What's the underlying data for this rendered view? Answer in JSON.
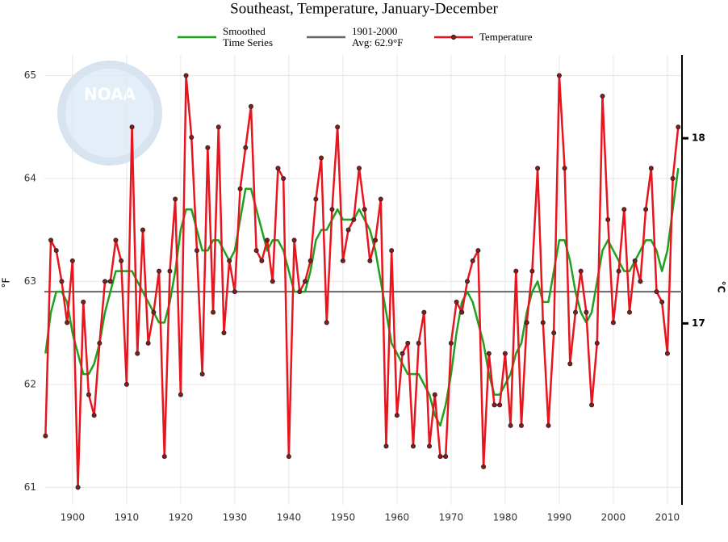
{
  "chart_data": {
    "type": "line",
    "title": "Southeast, Temperature, January-December",
    "logo_text": "NOAA",
    "y_label": "°F",
    "y2_label": "°C",
    "x": [
      1895,
      1896,
      1897,
      1898,
      1899,
      1900,
      1901,
      1902,
      1903,
      1904,
      1905,
      1906,
      1907,
      1908,
      1909,
      1910,
      1911,
      1912,
      1913,
      1914,
      1915,
      1916,
      1917,
      1918,
      1919,
      1920,
      1921,
      1922,
      1923,
      1924,
      1925,
      1926,
      1927,
      1928,
      1929,
      1930,
      1931,
      1932,
      1933,
      1934,
      1935,
      1936,
      1937,
      1938,
      1939,
      1940,
      1941,
      1942,
      1943,
      1944,
      1945,
      1946,
      1947,
      1948,
      1949,
      1950,
      1951,
      1952,
      1953,
      1954,
      1955,
      1956,
      1957,
      1958,
      1959,
      1960,
      1961,
      1962,
      1963,
      1964,
      1965,
      1966,
      1967,
      1968,
      1969,
      1970,
      1971,
      1972,
      1973,
      1974,
      1975,
      1976,
      1977,
      1978,
      1979,
      1980,
      1981,
      1982,
      1983,
      1984,
      1985,
      1986,
      1987,
      1988,
      1989,
      1990,
      1991,
      1992,
      1993,
      1994,
      1995,
      1996,
      1997,
      1998,
      1999,
      2000,
      2001,
      2002,
      2003,
      2004,
      2005,
      2006,
      2007,
      2008,
      2009,
      2010,
      2011,
      2012
    ],
    "series": [
      {
        "name": "Smoothed\nTime Series",
        "color": "#1fa01f",
        "markers": false,
        "values": [
          62.3,
          62.7,
          62.9,
          62.9,
          62.8,
          62.5,
          62.3,
          62.1,
          62.1,
          62.2,
          62.4,
          62.7,
          62.9,
          63.1,
          63.1,
          63.1,
          63.1,
          63.0,
          62.9,
          62.8,
          62.7,
          62.6,
          62.6,
          62.8,
          63.1,
          63.5,
          63.7,
          63.7,
          63.5,
          63.3,
          63.3,
          63.4,
          63.4,
          63.3,
          63.2,
          63.3,
          63.6,
          63.9,
          63.9,
          63.7,
          63.5,
          63.3,
          63.4,
          63.4,
          63.3,
          63.1,
          62.9,
          62.9,
          62.9,
          63.1,
          63.4,
          63.5,
          63.5,
          63.6,
          63.7,
          63.6,
          63.6,
          63.6,
          63.7,
          63.6,
          63.5,
          63.3,
          63.0,
          62.7,
          62.4,
          62.3,
          62.2,
          62.1,
          62.1,
          62.1,
          62.0,
          61.9,
          61.7,
          61.6,
          61.8,
          62.1,
          62.5,
          62.8,
          62.9,
          62.8,
          62.6,
          62.4,
          62.1,
          61.9,
          61.9,
          62.0,
          62.1,
          62.3,
          62.4,
          62.7,
          62.9,
          63.0,
          62.8,
          62.8,
          63.1,
          63.4,
          63.4,
          63.2,
          62.9,
          62.7,
          62.6,
          62.7,
          63.0,
          63.3,
          63.4,
          63.3,
          63.2,
          63.1,
          63.1,
          63.2,
          63.3,
          63.4,
          63.4,
          63.3,
          63.1,
          63.3,
          63.7,
          64.1
        ]
      },
      {
        "name": "Temperature",
        "color": "#e8141e",
        "markers": true,
        "values": [
          61.5,
          63.4,
          63.3,
          63.0,
          62.6,
          63.2,
          61.0,
          62.8,
          61.9,
          61.7,
          62.4,
          63.0,
          63.0,
          63.4,
          63.2,
          62.0,
          64.5,
          62.3,
          63.5,
          62.4,
          62.7,
          63.1,
          61.3,
          63.1,
          63.8,
          61.9,
          65.0,
          64.4,
          63.3,
          62.1,
          64.3,
          62.7,
          64.5,
          62.5,
          63.2,
          62.9,
          63.9,
          64.3,
          64.7,
          63.3,
          63.2,
          63.4,
          63.0,
          64.1,
          64.0,
          61.3,
          63.4,
          62.9,
          63.0,
          63.2,
          63.8,
          64.2,
          62.6,
          63.7,
          64.5,
          63.2,
          63.5,
          63.6,
          64.1,
          63.7,
          63.2,
          63.4,
          63.8,
          61.4,
          63.3,
          61.7,
          62.3,
          62.4,
          61.4,
          62.4,
          62.7,
          61.4,
          61.9,
          61.3,
          61.3,
          62.4,
          62.8,
          62.7,
          63.0,
          63.2,
          63.3,
          61.2,
          62.3,
          61.8,
          61.8,
          62.3,
          61.6,
          63.1,
          61.6,
          62.6,
          63.1,
          64.1,
          62.6,
          61.6,
          62.5,
          65.0,
          64.1,
          62.2,
          62.7,
          63.1,
          62.7,
          61.8,
          62.4,
          64.8,
          63.6,
          62.6,
          63.1,
          63.7,
          62.7,
          63.2,
          63.0,
          63.7,
          64.1,
          62.9,
          62.8,
          62.3,
          64.0,
          64.5
        ]
      }
    ],
    "reference_line": {
      "name": "1901-2000\nAvg: 62.9°F",
      "value": 62.9,
      "color": "#666666"
    },
    "xlim": [
      1894.8,
      2012.7
    ],
    "xticks": [
      1900,
      1910,
      1920,
      1930,
      1940,
      1950,
      1960,
      1970,
      1980,
      1990,
      2000,
      2010
    ],
    "ylim": [
      60.83,
      65.2
    ],
    "yticks": [
      61,
      62,
      63,
      64,
      65
    ],
    "y2lim": [
      16.02,
      18.45
    ],
    "y2ticks": [
      17,
      18
    ],
    "grid": true
  }
}
